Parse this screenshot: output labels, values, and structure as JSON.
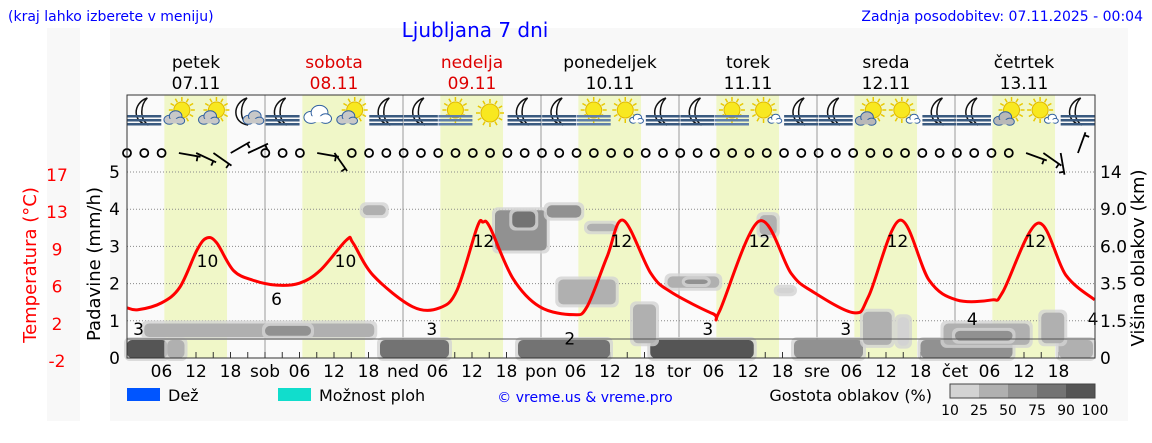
{
  "header": {
    "hint": "(kraj lahko izberete v meniju)",
    "title": "Ljubljana 7 dni",
    "updated": "Zadnja posodobitev: 07.11.2025 - 00:04"
  },
  "days": [
    {
      "name": "petek",
      "date": "07.11",
      "weekend": false
    },
    {
      "name": "sobota",
      "date": "08.11",
      "weekend": true
    },
    {
      "name": "nedelja",
      "date": "09.11",
      "weekend": true
    },
    {
      "name": "ponedeljek",
      "date": "10.11",
      "weekend": false
    },
    {
      "name": "torek",
      "date": "11.11",
      "weekend": false
    },
    {
      "name": "sreda",
      "date": "12.11",
      "weekend": false
    },
    {
      "name": "četrtek",
      "date": "13.11",
      "weekend": false
    }
  ],
  "weather_icons": [
    "moon-fog",
    "sun-cloud",
    "sun-cloud",
    "moon-cloud",
    "moon-fog",
    "cloud",
    "sun-cloud",
    "moon-fog",
    "moon-fog",
    "sun-fog",
    "sun",
    "moon-fog",
    "moon-fog",
    "sun-fog",
    "sun-small-cloud",
    "moon-fog",
    "moon-fog",
    "sun-fog",
    "sun-small-cloud",
    "moon-fog",
    "moon-fog",
    "sun-gray-cloud",
    "sun-small-cloud",
    "moon-fog",
    "moon-fog",
    "sun-gray-cloud",
    "sun-small-cloud",
    "moon-fog"
  ],
  "wind": [
    "calm",
    "calm",
    "calm",
    10,
    25,
    35,
    -30,
    -25,
    "calm",
    "calm",
    "calm",
    10,
    55,
    "calm",
    "calm",
    "calm",
    "calm",
    "calm",
    "calm",
    "calm",
    "calm",
    "calm",
    "calm",
    "calm",
    "calm",
    "calm",
    "calm",
    "calm",
    "calm",
    "calm",
    "calm",
    "calm",
    "calm",
    "calm",
    "calm",
    "calm",
    "calm",
    "calm",
    "calm",
    "calm",
    "calm",
    "calm",
    "calm",
    "calm",
    "calm",
    "calm",
    "calm",
    "calm",
    "calm",
    "calm",
    "calm",
    "calm",
    20,
    35,
    80,
    -70
  ],
  "chart_data": {
    "type": "line",
    "title": "Ljubljana 7 dni",
    "left_axis_temp": {
      "label": "Temperatura (°C)",
      "ticks": [
        "17",
        "13",
        "9",
        "6",
        "2",
        "-2"
      ],
      "color": "#ff0000"
    },
    "left_axis_precip": {
      "label": "Padavine (mm/h)",
      "ticks": [
        "5",
        "4",
        "3",
        "2",
        "1",
        "0"
      ],
      "ylim": [
        0,
        5
      ]
    },
    "right_axis_cloud": {
      "label": "Višina oblakov (km)",
      "ticks": [
        "14",
        "9.0",
        "6.0",
        "3.5",
        "1.5",
        "0"
      ]
    },
    "x_ticks": [
      "06",
      "12",
      "18",
      "sob",
      "06",
      "12",
      "18",
      "ned",
      "06",
      "12",
      "18",
      "pon",
      "06",
      "12",
      "18",
      "tor",
      "06",
      "12",
      "18",
      "sre",
      "06",
      "12",
      "18",
      "čet",
      "06",
      "12",
      "18"
    ],
    "grid": true,
    "daylight_hours": [
      6.5,
      17.4
    ],
    "temperature_series": {
      "color": "#ff0000",
      "points_hour_temp": [
        [
          0,
          3.2
        ],
        [
          1.9,
          3.0
        ],
        [
          6,
          3.7
        ],
        [
          9.2,
          5.3
        ],
        [
          12.2,
          9.1
        ],
        [
          13.9,
          10.3
        ],
        [
          15.6,
          9.8
        ],
        [
          18.5,
          7.0
        ],
        [
          21.9,
          6.0
        ],
        [
          26,
          5.5
        ],
        [
          30,
          5.7
        ],
        [
          33.6,
          7.0
        ],
        [
          38.2,
          10.1
        ],
        [
          39.3,
          9.8
        ],
        [
          42.8,
          6.5
        ],
        [
          49.7,
          3.3
        ],
        [
          54.4,
          3.2
        ],
        [
          57.4,
          5.0
        ],
        [
          60.9,
          11.4
        ],
        [
          61.9,
          11.9
        ],
        [
          63.1,
          11.4
        ],
        [
          67.1,
          6.2
        ],
        [
          71.8,
          3.3
        ],
        [
          77.6,
          2.5
        ],
        [
          80,
          3.3
        ],
        [
          83.5,
          8.4
        ],
        [
          86.3,
          12.1
        ],
        [
          91.1,
          6.7
        ],
        [
          94.6,
          4.8
        ],
        [
          101.9,
          2.6
        ],
        [
          103,
          2.8
        ],
        [
          109.9,
          12.0
        ],
        [
          115.5,
          6.7
        ],
        [
          119.1,
          4.9
        ],
        [
          126.4,
          2.7
        ],
        [
          129,
          4.4
        ],
        [
          134.4,
          12.1
        ],
        [
          139.5,
          6.0
        ],
        [
          144.3,
          4.0
        ],
        [
          150.4,
          4.0
        ],
        [
          152.3,
          4.8
        ],
        [
          158.4,
          11.8
        ],
        [
          163.3,
          6.5
        ],
        [
          168.3,
          4.0
        ]
      ]
    },
    "temp_labels": [
      {
        "hour": 2,
        "value": "3",
        "kind": "min"
      },
      {
        "hour": 14,
        "value": "10",
        "kind": "max"
      },
      {
        "hour": 26,
        "value": "6",
        "kind": "min"
      },
      {
        "hour": 38,
        "value": "10",
        "kind": "max"
      },
      {
        "hour": 53,
        "value": "3",
        "kind": "min"
      },
      {
        "hour": 62,
        "value": "12",
        "kind": "max"
      },
      {
        "hour": 77,
        "value": "2",
        "kind": "min"
      },
      {
        "hour": 86,
        "value": "12",
        "kind": "max"
      },
      {
        "hour": 101,
        "value": "3",
        "kind": "min"
      },
      {
        "hour": 110,
        "value": "12",
        "kind": "max"
      },
      {
        "hour": 125,
        "value": "3",
        "kind": "min"
      },
      {
        "hour": 134,
        "value": "12",
        "kind": "max"
      },
      {
        "hour": 147,
        "value": "4",
        "kind": "min"
      },
      {
        "hour": 158,
        "value": "12",
        "kind": "max"
      },
      {
        "hour": 168,
        "value": "4",
        "kind": "min"
      }
    ],
    "precipitation_mm_h": [],
    "cloud_layers_hour_start_end_km_low_high_density": [
      [
        0,
        7,
        0,
        0.73,
        90
      ],
      [
        7,
        10,
        0,
        0.73,
        30
      ],
      [
        44,
        56,
        0,
        0.73,
        75
      ],
      [
        68,
        84,
        0,
        0.73,
        80
      ],
      [
        91,
        109,
        0,
        0.73,
        90
      ],
      [
        116,
        128,
        0,
        0.73,
        50
      ],
      [
        138,
        154,
        0,
        0.73,
        55
      ],
      [
        162,
        168,
        0,
        0.73,
        45
      ],
      [
        3,
        43,
        0.85,
        1.4,
        40
      ],
      [
        24,
        32,
        0.9,
        1.3,
        60
      ],
      [
        41,
        45,
        8.5,
        9.5,
        25
      ],
      [
        64,
        73,
        5.7,
        8.9,
        55
      ],
      [
        67,
        71,
        7.5,
        8.8,
        80
      ],
      [
        73,
        79,
        8.3,
        9.5,
        50
      ],
      [
        80,
        85,
        7.2,
        7.8,
        25
      ],
      [
        75,
        85,
        2.4,
        3.8,
        45
      ],
      [
        94,
        103,
        3.3,
        4.0,
        35
      ],
      [
        97,
        101,
        3.5,
        3.8,
        55
      ],
      [
        88,
        92,
        0.6,
        2.4,
        45
      ],
      [
        110,
        113,
        6.9,
        8.5,
        25
      ],
      [
        113,
        116,
        3.0,
        3.3,
        20
      ],
      [
        128,
        133,
        0.53,
        2.0,
        45
      ],
      [
        134,
        136,
        0.5,
        1.7,
        20
      ],
      [
        142,
        157,
        0.53,
        1.4,
        40
      ],
      [
        144,
        154,
        0.7,
        1.1,
        55
      ],
      [
        159,
        163,
        0.6,
        1.95,
        45
      ]
    ]
  },
  "legend": {
    "rain": "Dež",
    "rain_color": "#0055ff",
    "showers": "Možnost ploh",
    "showers_color": "#11ddcc",
    "credit": "© vreme.us & vreme.pro",
    "cloud_density_label": "Gostota oblakov (%)",
    "density_steps": [
      "10",
      "25",
      "50",
      "75",
      "90",
      "100"
    ],
    "density_colors": [
      "#d3d3d3",
      "#b0b0b0",
      "#919191",
      "#737373",
      "#555555"
    ]
  }
}
